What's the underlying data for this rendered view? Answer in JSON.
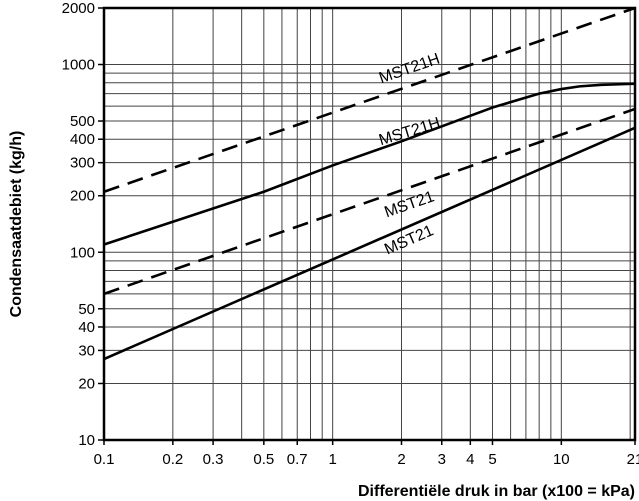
{
  "chart_data": {
    "type": "line",
    "title": "",
    "xlabel": "Differentiële druk in bar (x100 = kPa)",
    "ylabel": "Condensaatdebiet (kg/h)",
    "xscale": "log",
    "yscale": "log",
    "xlim": [
      0.1,
      21
    ],
    "ylim": [
      10,
      2000
    ],
    "grid": true,
    "x_ticks": [
      {
        "value": 0.1,
        "label": "0.1"
      },
      {
        "value": 0.2,
        "label": "0.2"
      },
      {
        "value": 0.3,
        "label": "0.3"
      },
      {
        "value": 0.5,
        "label": "0.5"
      },
      {
        "value": 0.7,
        "label": "0.7"
      },
      {
        "value": 1,
        "label": "1"
      },
      {
        "value": 2,
        "label": "2"
      },
      {
        "value": 3,
        "label": "3"
      },
      {
        "value": 4,
        "label": "4"
      },
      {
        "value": 5,
        "label": "5"
      },
      {
        "value": 10,
        "label": "10"
      },
      {
        "value": 21,
        "label": "21"
      }
    ],
    "y_ticks": [
      {
        "value": 10,
        "label": "10"
      },
      {
        "value": 20,
        "label": "20"
      },
      {
        "value": 30,
        "label": "30"
      },
      {
        "value": 40,
        "label": "40"
      },
      {
        "value": 50,
        "label": "50"
      },
      {
        "value": 100,
        "label": "100"
      },
      {
        "value": 200,
        "label": "200"
      },
      {
        "value": 300,
        "label": "300"
      },
      {
        "value": 400,
        "label": "400"
      },
      {
        "value": 500,
        "label": "500"
      },
      {
        "value": 1000,
        "label": "1000"
      },
      {
        "value": 2000,
        "label": "2000"
      }
    ],
    "series": [
      {
        "name": "MST21H",
        "style": "dashed",
        "x": [
          0.1,
          21
        ],
        "y": [
          210,
          2000
        ],
        "label_at": [
          2.2,
          900
        ]
      },
      {
        "name": "MST21H",
        "style": "solid",
        "x": [
          0.1,
          0.5,
          1,
          2,
          5,
          8,
          10,
          12,
          15,
          21
        ],
        "y": [
          110,
          210,
          290,
          390,
          590,
          700,
          740,
          765,
          780,
          790
        ],
        "label_at": [
          2.2,
          415
        ]
      },
      {
        "name": "MST21",
        "style": "dashed",
        "x": [
          0.1,
          21
        ],
        "y": [
          60,
          580
        ],
        "label_at": [
          2.2,
          170
        ]
      },
      {
        "name": "MST21",
        "style": "solid",
        "x": [
          0.1,
          21
        ],
        "y": [
          27,
          460
        ],
        "label_at": [
          2.2,
          110
        ]
      }
    ]
  }
}
